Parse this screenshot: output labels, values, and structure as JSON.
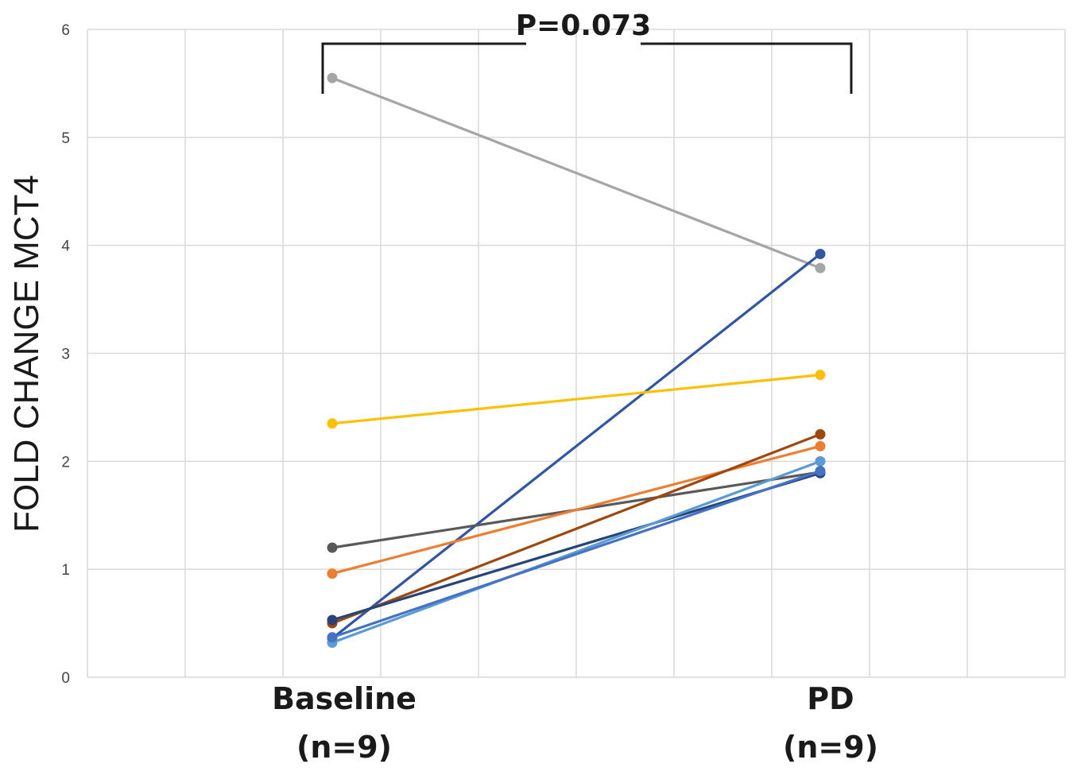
{
  "chart_data": {
    "type": "line",
    "title": "",
    "ylabel": "FOLD CHANGE MCT4",
    "xlabel": "",
    "ylim": [
      0,
      6
    ],
    "yticks": [
      "0",
      "1",
      "2",
      "3",
      "4",
      "5",
      "6"
    ],
    "categories": [
      {
        "line1": "Baseline",
        "line2": "(n=9)"
      },
      {
        "line1": "PD",
        "line2": "(n=9)"
      }
    ],
    "grid": true,
    "annotation": {
      "text": "P=0.073"
    },
    "series": [
      {
        "name": "series-gray",
        "color": "#a5a5a5",
        "values": [
          5.55,
          3.79
        ]
      },
      {
        "name": "series-blue",
        "color": "#2f55a4",
        "values": [
          0.36,
          3.92
        ]
      },
      {
        "name": "series-yellow",
        "color": "#ffc000",
        "values": [
          2.35,
          2.8
        ]
      },
      {
        "name": "series-darkgray",
        "color": "#595959",
        "values": [
          1.2,
          1.9
        ]
      },
      {
        "name": "series-orange",
        "color": "#ed7d31",
        "values": [
          0.96,
          2.14
        ]
      },
      {
        "name": "series-brown",
        "color": "#9e480e",
        "values": [
          0.5,
          2.25
        ]
      },
      {
        "name": "series-navy",
        "color": "#264478",
        "values": [
          0.53,
          1.89
        ]
      },
      {
        "name": "series-lightblue",
        "color": "#5b9bd5",
        "values": [
          0.32,
          2.0
        ]
      },
      {
        "name": "series-steel",
        "color": "#4472c4",
        "values": [
          0.37,
          1.91
        ]
      }
    ]
  }
}
